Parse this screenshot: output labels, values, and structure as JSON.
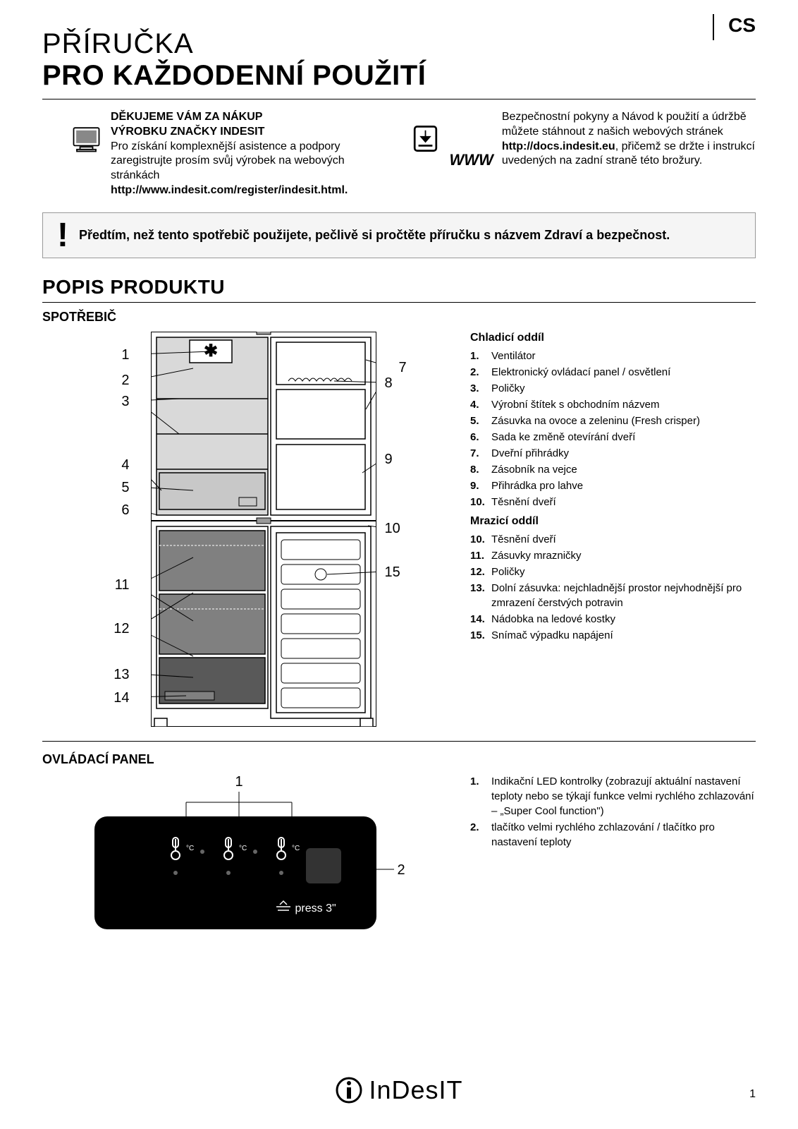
{
  "lang": "CS",
  "title_light": "PŘÍRUČKA",
  "title_bold": "PRO KAŽDODENNÍ POUŽITÍ",
  "thanks_heading1": "DĚKUJEME VÁM ZA NÁKUP",
  "thanks_heading2": "VÝROBKU ZNAČKY INDESIT",
  "thanks_text": "Pro získání komplexnější asistence a podpory zaregistrujte prosím svůj výrobek na webových stránkách",
  "thanks_url": "http://www.indesit.com/register/indesit.html.",
  "www_label": "WWW",
  "www_text1": "Bezpečnostní pokyny a Návod k použití a údržbě můžete stáhnout z našich webových stránek ",
  "www_url": "http://docs.indesit.eu",
  "www_text2": ", přičemž se držte i instrukcí uvedených na zadní straně této brožury.",
  "warning_text": "Předtím, než tento spotřebič použijete, pečlivě si pročtěte příručku s názvem Zdraví a bezpečnost.",
  "section_product": "POPIS PRODUKTU",
  "subsection_appliance": "SPOTŘEBIČ",
  "legend_cooling_title": "Chladicí oddíl",
  "legend_cooling": [
    {
      "num": "1.",
      "txt": "Ventilátor"
    },
    {
      "num": "2.",
      "txt": "Elektronický ovládací panel / osvětlení"
    },
    {
      "num": "3.",
      "txt": "Poličky"
    },
    {
      "num": "4.",
      "txt": "Výrobní štítek s obchodním názvem"
    },
    {
      "num": "5.",
      "txt": "Zásuvka na ovoce a zeleninu (Fresh crisper)"
    },
    {
      "num": "6.",
      "txt": "Sada ke změně otevírání dveří"
    },
    {
      "num": "7.",
      "txt": "Dveřní přihrádky"
    },
    {
      "num": "8.",
      "txt": "Zásobník na vejce"
    },
    {
      "num": "9.",
      "txt": "Přihrádka pro lahve"
    },
    {
      "num": "10.",
      "txt": "Těsnění dveří"
    }
  ],
  "legend_freezer_title": "Mrazicí oddíl",
  "legend_freezer": [
    {
      "num": "10.",
      "txt": "Těsnění dveří"
    },
    {
      "num": "11.",
      "txt": "Zásuvky mrazničky"
    },
    {
      "num": "12.",
      "txt": "Poličky"
    },
    {
      "num": "13.",
      "txt": "Dolní zásuvka: nejchladnější prostor nejvhodnější pro zmrazení čerstvých potravin"
    },
    {
      "num": "14.",
      "txt": "Nádobka na ledové kostky"
    },
    {
      "num": "15.",
      "txt": "Snímač výpadku napájení"
    }
  ],
  "subsection_panel": "OVLÁDACÍ PANEL",
  "panel_legend": [
    {
      "num": "1.",
      "txt": "Indikační LED kontrolky (zobrazují aktuální nastavení teploty nebo se týkají funkce velmi rychlého zchlazování – „Super Cool function\")"
    },
    {
      "num": "2.",
      "txt": "tlačítko velmi rychlého zchlazování / tlačítko pro nastavení teploty"
    }
  ],
  "panel_press": "press 3\"",
  "footer_brand": "InDesIT",
  "page_num": "1",
  "diagram_numbers_left": [
    "1",
    "2",
    "3",
    "4",
    "5",
    "6",
    "11",
    "12",
    "13",
    "14"
  ],
  "diagram_numbers_right": [
    "7",
    "8",
    "9",
    "10",
    "15"
  ],
  "panel_numbers": [
    "1",
    "2"
  ],
  "colors": {
    "fridge_light": "#d9d9d9",
    "fridge_med": "#b8b8b8",
    "fridge_dark": "#808080",
    "fridge_darker": "#595959",
    "panel_bg": "#000000",
    "warning_bg": "#f5f5f5"
  }
}
